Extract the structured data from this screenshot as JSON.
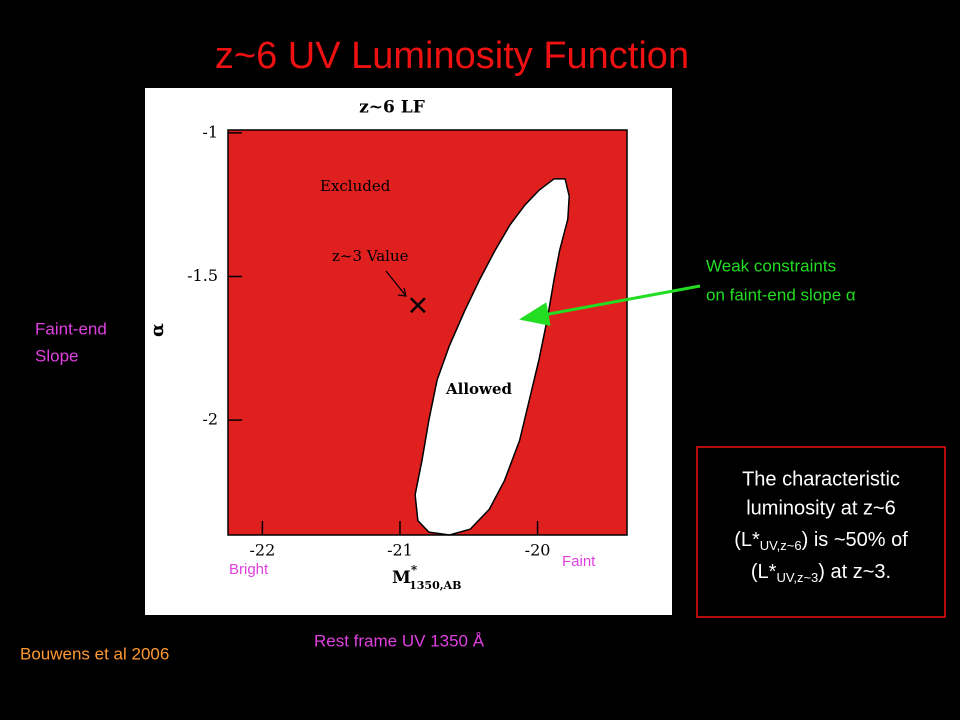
{
  "slide": {
    "title": "z~6 UV Luminosity Function",
    "y_side_label": [
      "Faint-end",
      "Slope"
    ],
    "bright": "Bright",
    "faint": "Faint",
    "x_side_label": "Rest frame UV 1350 Å",
    "citation": "Bouwens et al 2006",
    "callout": [
      "Weak constraints",
      "on faint-end slope α"
    ],
    "note": {
      "line1": "The characteristic",
      "line2": "luminosity at z~6",
      "line3": {
        "pre": "(L*",
        "sub": "UV,z~6",
        "post": ") is ~50% of"
      },
      "line4": {
        "pre": "(L*",
        "sub": "UV,z~3",
        "post": ") at z~3."
      }
    }
  },
  "chart_data": {
    "type": "contour",
    "title": "z~6 LF",
    "x_label": {
      "main": "M",
      "sup": "*",
      "sub": "1350,AB"
    },
    "y_label": "α",
    "xlim": [
      -22.25,
      -19.35
    ],
    "ylim": [
      -2.4,
      -0.99
    ],
    "xticks": [
      -22,
      -21,
      -20
    ],
    "yticks": [
      -1,
      -1.5,
      -2
    ],
    "background_color": "#e0201f",
    "excluded_label": "Excluded",
    "region": {
      "name": "Allowed",
      "color": "#ffffff",
      "x": [
        -20.79,
        -20.87,
        -20.89,
        -20.84,
        -20.79,
        -20.73,
        -20.64,
        -20.53,
        -20.42,
        -20.31,
        -20.2,
        -20.09,
        -19.99,
        -19.88,
        -19.8,
        -19.77,
        -19.78,
        -19.84,
        -19.88,
        -19.93,
        -19.99,
        -20.06,
        -20.13,
        -20.24,
        -20.35,
        -20.49,
        -20.64
      ],
      "values": [
        -2.39,
        -2.35,
        -2.26,
        -2.14,
        -2.0,
        -1.86,
        -1.74,
        -1.62,
        -1.51,
        -1.41,
        -1.32,
        -1.25,
        -1.2,
        -1.16,
        -1.16,
        -1.22,
        -1.3,
        -1.41,
        -1.51,
        -1.65,
        -1.79,
        -1.93,
        -2.07,
        -2.21,
        -2.31,
        -2.38,
        -2.4
      ]
    },
    "point": {
      "label": "z~3 Value",
      "x": -20.87,
      "y": -1.6
    }
  }
}
